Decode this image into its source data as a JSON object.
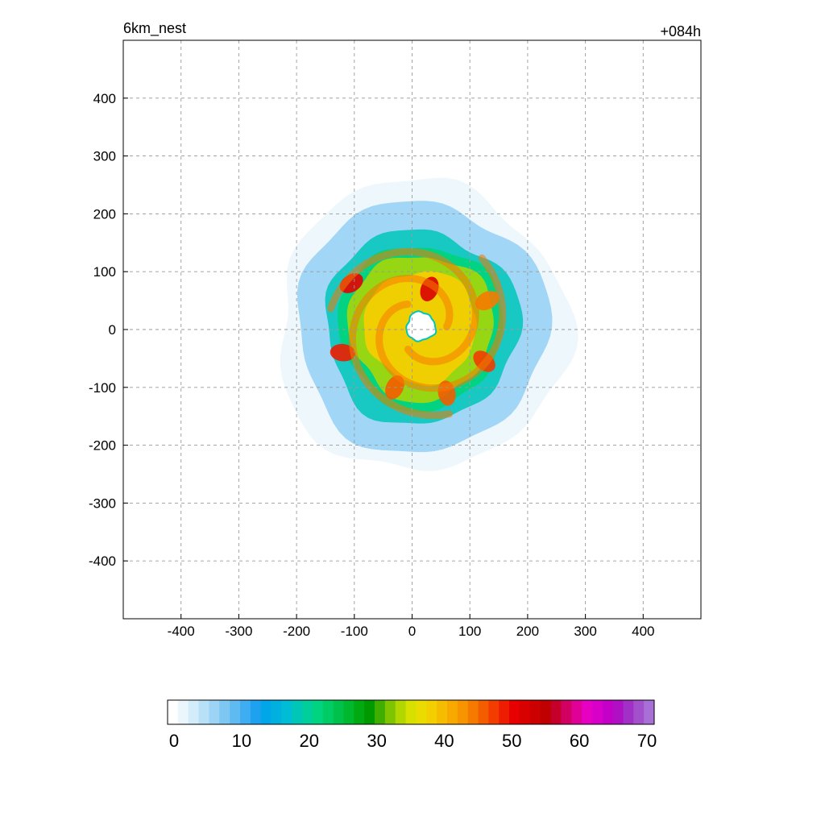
{
  "chart_data": {
    "type": "heatmap",
    "title_left": "6km_nest",
    "title_right": "+084h",
    "xlabel": "",
    "ylabel": "",
    "xlim": [
      -500,
      500
    ],
    "ylim": [
      -500,
      500
    ],
    "x_ticks": [
      -400,
      -300,
      -200,
      -100,
      0,
      100,
      200,
      300,
      400
    ],
    "y_ticks": [
      400,
      300,
      200,
      100,
      0,
      -100,
      -200,
      -300,
      -400
    ],
    "grid": true,
    "storm_center": [
      15,
      5
    ],
    "eye_radius": 25,
    "features": [
      {
        "kind": "outer_band",
        "inner_radius": 150,
        "outer_radius": 240,
        "value": 6
      },
      {
        "kind": "ring",
        "inner_radius": 90,
        "outer_radius": 160,
        "value": 22
      },
      {
        "kind": "eyewall",
        "inner_radius": 30,
        "outer_radius": 120,
        "value": 38
      },
      {
        "kind": "core_max",
        "x": 30,
        "y": 70,
        "value": 52
      },
      {
        "kind": "core_max",
        "x": -105,
        "y": 80,
        "value": 50
      },
      {
        "kind": "core_max",
        "x": -120,
        "y": -40,
        "value": 48
      },
      {
        "kind": "core_max",
        "x": 125,
        "y": -55,
        "value": 47
      },
      {
        "kind": "core_max",
        "x": 60,
        "y": -110,
        "value": 46
      },
      {
        "kind": "core_max",
        "x": -30,
        "y": -100,
        "value": 46
      },
      {
        "kind": "core_max",
        "x": 130,
        "y": 50,
        "value": 44
      }
    ],
    "colorbar": {
      "min": 0,
      "max": 70,
      "tick_labels": [
        "0",
        "10",
        "20",
        "30",
        "40",
        "50",
        "60",
        "70"
      ],
      "colors": [
        "#ffffff",
        "#eaf6fc",
        "#d2ecf9",
        "#b8e0f7",
        "#9dd4f5",
        "#7fc7f3",
        "#60baf2",
        "#3fadf1",
        "#1ea2ef",
        "#00a6e8",
        "#00b1e0",
        "#00bcd4",
        "#00c6b8",
        "#00cf9c",
        "#00d480",
        "#00cc66",
        "#00c24a",
        "#00b82e",
        "#00aa10",
        "#009900",
        "#3fae00",
        "#7fc400",
        "#b2d600",
        "#d8e000",
        "#eadc00",
        "#f3cf00",
        "#f6bd00",
        "#f7a900",
        "#f79400",
        "#f67a00",
        "#f45c00",
        "#f23c00",
        "#ee1c00",
        "#e60000",
        "#d90000",
        "#cc0000",
        "#c00000",
        "#c4002a",
        "#d20060",
        "#e00096",
        "#e600c2",
        "#d800c8",
        "#c400c8",
        "#b010c4",
        "#a030c6",
        "#a350cc",
        "#a870d6"
      ]
    }
  }
}
